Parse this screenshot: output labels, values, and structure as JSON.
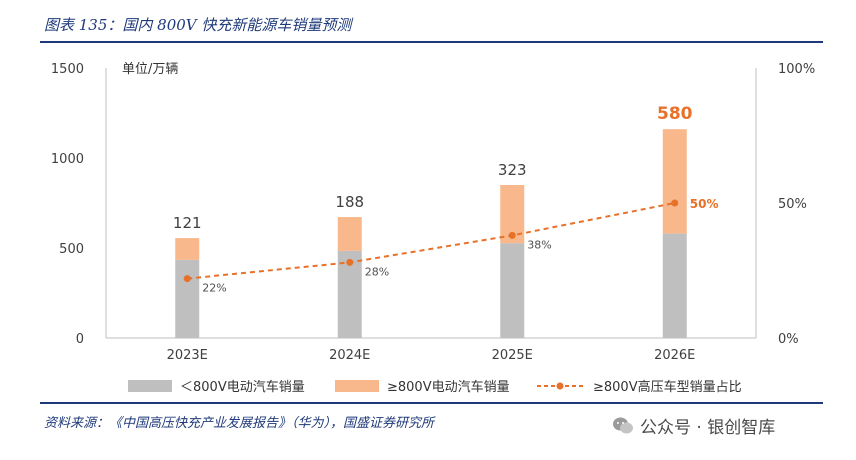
{
  "header": {
    "title": "图表 135：国内 800V 快充新能源车销量预测"
  },
  "footer": {
    "source": "资料来源：《中国高压快充产业发展报告》（华为），国盛证券研究所",
    "wechat_label": "公众号 · 银创智库"
  },
  "chart_data": {
    "type": "bar",
    "stacked": true,
    "categories": [
      "2023E",
      "2024E",
      "2025E",
      "2026E"
    ],
    "unit_label": "单位/万辆",
    "ylim": [
      0,
      1500
    ],
    "yticks": [
      "0",
      "500",
      "1000",
      "1500"
    ],
    "y2lim": [
      0,
      100
    ],
    "y2ticks": [
      "0%",
      "50%",
      "100%"
    ],
    "series": [
      {
        "name": "＜800V电动汽车销量",
        "values": [
          434,
          484,
          527,
          580
        ],
        "color": "#bfbfbf"
      },
      {
        "name": "≥800V电动汽车销量",
        "values": [
          121,
          188,
          323,
          580
        ],
        "color": "#f8b88b"
      }
    ],
    "line_series": {
      "name": "≥800V高压车型销量占比",
      "values": [
        22,
        28,
        38,
        50
      ],
      "labels": [
        "22%",
        "28%",
        "38%",
        "50%"
      ],
      "color": "#e8712a"
    },
    "bar_labels": [
      "121",
      "188",
      "323",
      "580"
    ],
    "grid": false
  }
}
